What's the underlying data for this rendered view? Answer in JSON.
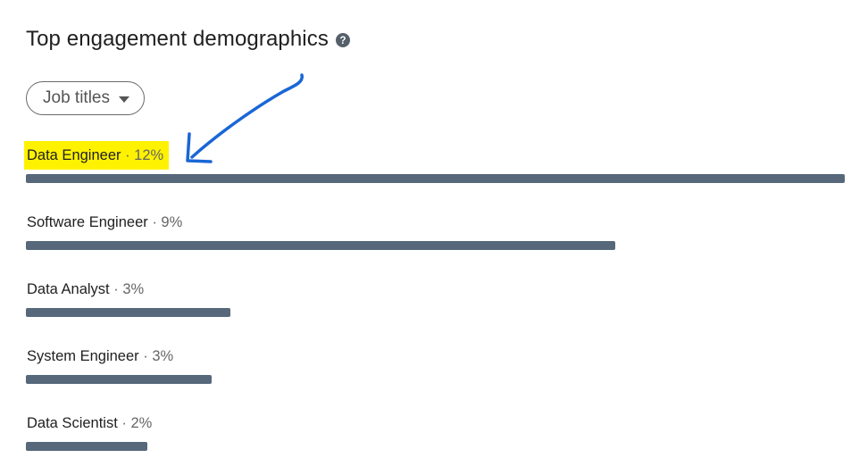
{
  "header": {
    "title": "Top engagement demographics",
    "help_icon": "question-circle-icon"
  },
  "filter": {
    "selected": "Job titles",
    "icon": "caret-down-icon"
  },
  "rows": [
    {
      "name": "Data Engineer",
      "separator": " · ",
      "percent": "12%",
      "fraction": 1.0,
      "highlighted": true
    },
    {
      "name": "Software Engineer",
      "separator": " · ",
      "percent": "9%",
      "fraction": 0.72
    },
    {
      "name": "Data Analyst",
      "separator": " · ",
      "percent": "3%",
      "fraction": 0.25
    },
    {
      "name": "System Engineer",
      "separator": " · ",
      "percent": "3%",
      "fraction": 0.227
    },
    {
      "name": "Data Scientist",
      "separator": " · ",
      "percent": "2%",
      "fraction": 0.148
    }
  ],
  "colors": {
    "bar": "#56687a",
    "highlight": "#fff200",
    "annotation_arrow": "#1a66d6"
  },
  "annotation": {
    "icon": "hand-drawn-arrow-icon"
  }
}
